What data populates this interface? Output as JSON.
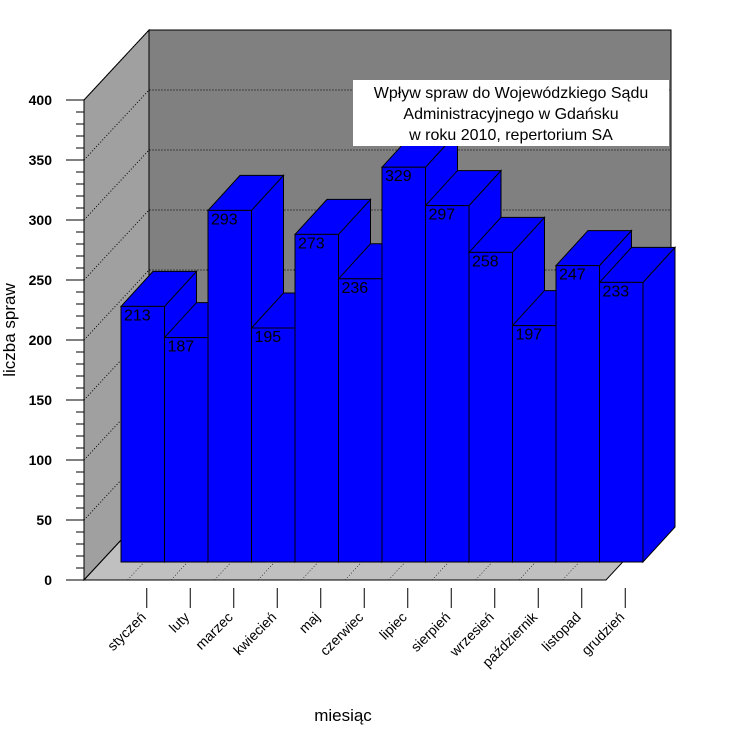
{
  "chart_data": {
    "type": "bar",
    "title_lines": [
      "Wpływ spraw do Wojewódzkiego Sądu",
      "Administracyjnego w Gdańsku",
      "w roku 2010, repertorium SA"
    ],
    "xlabel": "miesiąc",
    "ylabel": "liczba spraw",
    "categories": [
      "styczeń",
      "luty",
      "marzec",
      "kwiecień",
      "maj",
      "czerwiec",
      "lipiec",
      "sierpień",
      "wrzesień",
      "październik",
      "listopad",
      "grudzień"
    ],
    "values": [
      213,
      187,
      293,
      195,
      273,
      236,
      329,
      297,
      258,
      197,
      247,
      233
    ],
    "yticks": [
      0,
      50,
      100,
      150,
      200,
      250,
      300,
      350,
      400
    ],
    "ylim": [
      0,
      400
    ],
    "grid": true,
    "bar_color": "#0000ff",
    "wall_color": "#808080",
    "floor_color": "#c0c0c0"
  }
}
